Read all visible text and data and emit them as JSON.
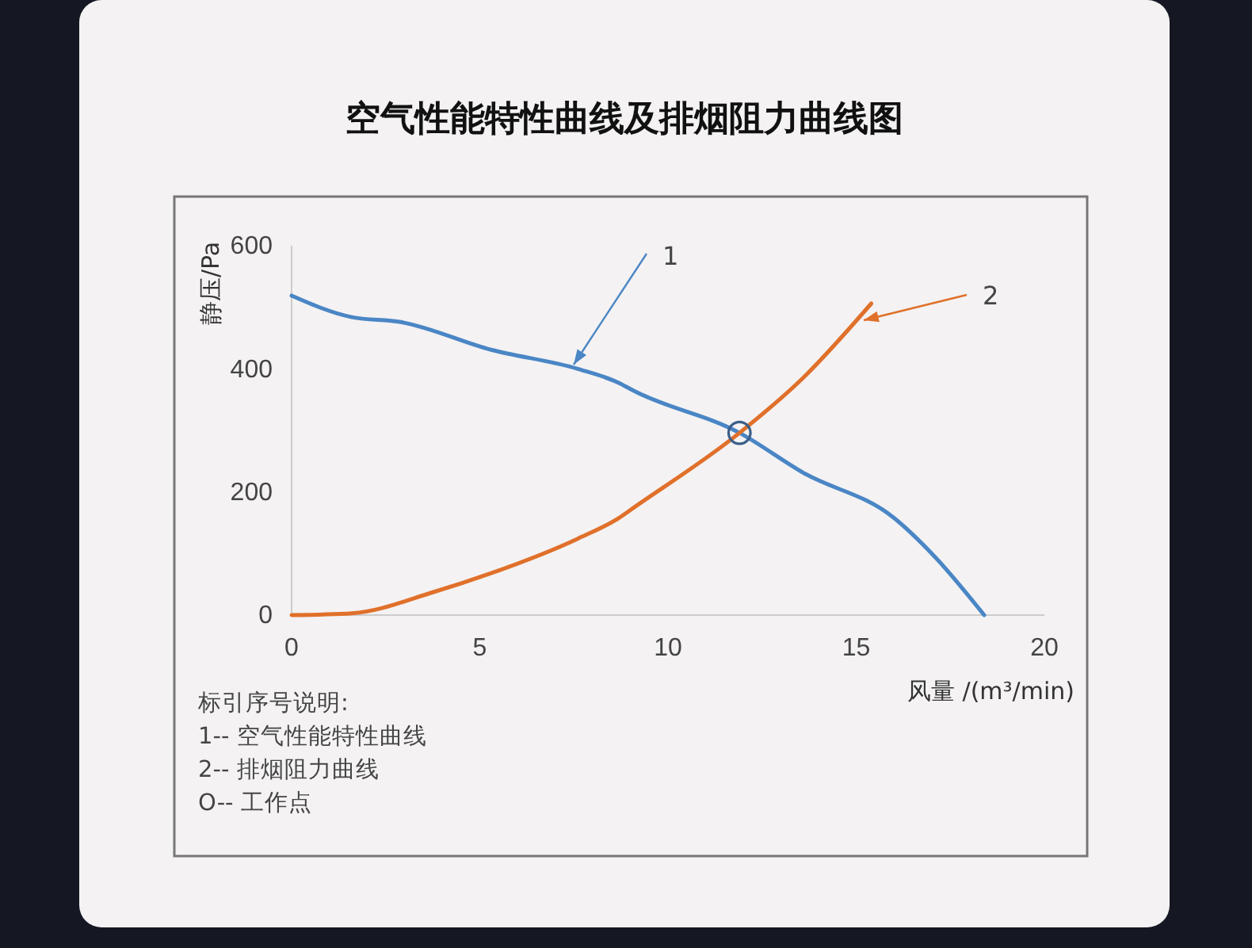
{
  "chart_data": {
    "type": "line",
    "title": "空气性能特性曲线及排烟阻力曲线图",
    "xlabel": "风量 /(m³/min)",
    "ylabel": "静压/Pa",
    "xlim": [
      0,
      20
    ],
    "xticks": [
      0,
      5,
      10,
      15,
      20
    ],
    "ylim": [
      0,
      600
    ],
    "yticks": [
      0,
      200,
      400,
      600
    ],
    "grid": false,
    "legend": "top right",
    "series": [
      {
        "name": "1",
        "color": "#4a86c5",
        "x": [
          0,
          1.6,
          2.9,
          5.3,
          7.6,
          8.7,
          9.1,
          11.9,
          13.6,
          16,
          17.1,
          18.4
        ],
        "values": [
          519,
          484,
          476,
          431,
          400,
          377,
          364,
          296,
          231,
          158,
          94,
          0
        ]
      },
      {
        "name": "2",
        "color": "#e0702a",
        "x": [
          0,
          1.6,
          3.8,
          5.3,
          7.6,
          8.7,
          9.1,
          11.9,
          13.6,
          15.4
        ],
        "values": [
          0,
          3,
          38,
          68,
          124,
          158,
          175,
          296,
          386,
          506
        ]
      },
      {
        "type": "scatter",
        "color": "#3b5f8a",
        "marker": "circle",
        "x": [
          11.9
        ],
        "values": [
          296
        ]
      }
    ],
    "annotations": [
      "标引序号说明:",
      "1-- 空气性能特性曲线",
      "2-- 排烟阻力曲线",
      "O-- 工作点"
    ]
  }
}
